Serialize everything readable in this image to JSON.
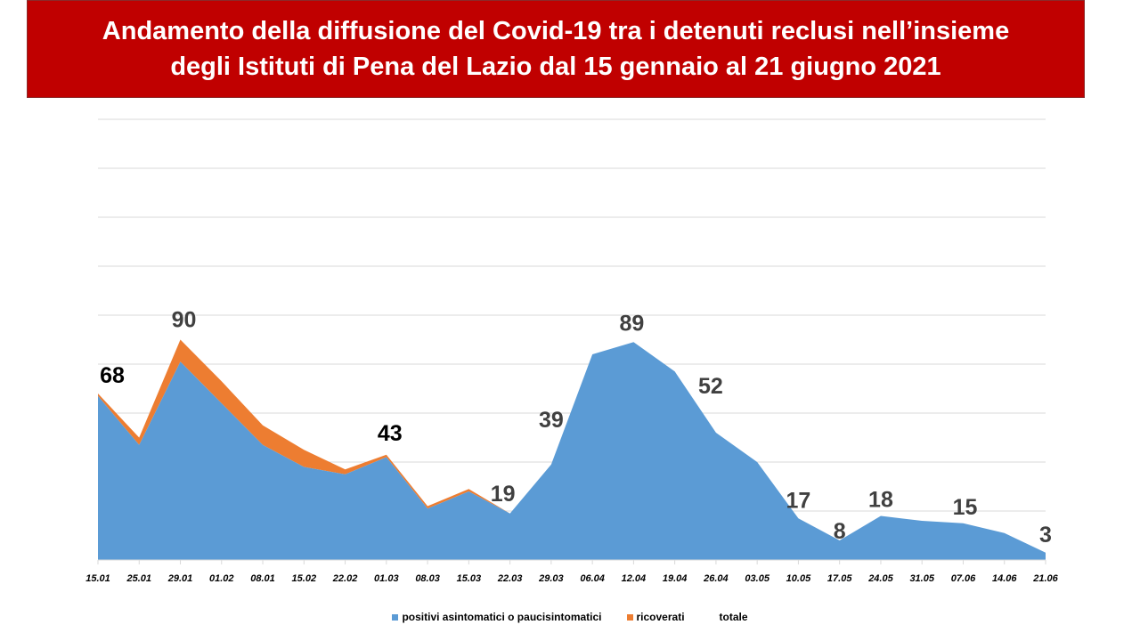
{
  "title": {
    "line1": "Andamento della diffusione del Covid-19 tra i detenuti reclusi nell’insieme",
    "line2": "degli Istituti di Pena del Lazio dal 15 gennaio al 21 giugno 2021"
  },
  "colors": {
    "banner": "#c00000",
    "positivi": "#5b9bd5",
    "ricoverati": "#ed7d31"
  },
  "chart_data": {
    "type": "area",
    "stacked": true,
    "categories": [
      "15.01",
      "25.01",
      "29.01",
      "01.02",
      "08.01",
      "15.02",
      "22.02",
      "01.03",
      "08.03",
      "15.03",
      "22.03",
      "29.03",
      "06.04",
      "12.04",
      "19.04",
      "26.04",
      "03.05",
      "10.05",
      "17.05",
      "24.05",
      "31.05",
      "07.06",
      "14.06",
      "21.06"
    ],
    "series": [
      {
        "name": "positivi asintomatici o paucisintomatici",
        "values": [
          67,
          47,
          81,
          64,
          47,
          38,
          35,
          42,
          21,
          28,
          19,
          39,
          84,
          89,
          77,
          52,
          40,
          17,
          8,
          18,
          16,
          15,
          11,
          3
        ]
      },
      {
        "name": "ricoverati",
        "values": [
          1,
          3,
          9,
          9,
          8,
          7,
          2,
          1,
          1,
          1,
          0,
          0,
          0,
          0,
          0,
          0,
          0,
          0,
          0,
          0,
          0,
          0,
          0,
          0
        ]
      },
      {
        "name": "totale",
        "values": [
          68,
          50,
          90,
          73,
          55,
          45,
          37,
          43,
          22,
          29,
          19,
          39,
          84,
          89,
          77,
          52,
          40,
          17,
          8,
          18,
          16,
          15,
          11,
          3
        ]
      }
    ],
    "data_labels": [
      {
        "category": "15.01",
        "text": "68",
        "color": "#000000"
      },
      {
        "category": "29.01",
        "text": "90",
        "color": "#404040"
      },
      {
        "category": "01.03",
        "text": "43",
        "color": "#000000"
      },
      {
        "category": "22.03",
        "text": "19",
        "color": "#404040"
      },
      {
        "category": "29.03",
        "text": "39",
        "color": "#404040"
      },
      {
        "category": "12.04",
        "text": "89",
        "color": "#404040"
      },
      {
        "category": "26.04",
        "text": "52",
        "color": "#404040"
      },
      {
        "category": "10.05",
        "text": "17",
        "color": "#404040"
      },
      {
        "category": "17.05",
        "text": "8",
        "color": "#404040"
      },
      {
        "category": "24.05",
        "text": "18",
        "color": "#404040"
      },
      {
        "category": "07.06",
        "text": "15",
        "color": "#404040"
      },
      {
        "category": "21.06",
        "text": "3",
        "color": "#404040"
      }
    ],
    "ylim": [
      0,
      180
    ],
    "y_gridline_step": 20,
    "y_tick_labels_shown": false,
    "grid": true,
    "legend_position": "bottom"
  }
}
